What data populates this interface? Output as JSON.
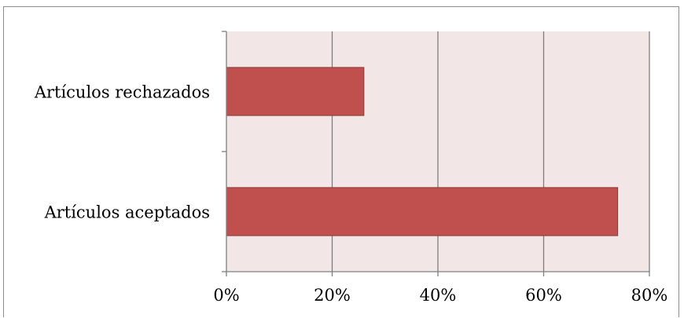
{
  "chart_data": {
    "type": "bar",
    "orientation": "horizontal",
    "categories": [
      "Artículos rechazados",
      "Artículos aceptados"
    ],
    "values": [
      26,
      74
    ],
    "value_unit": "%",
    "xlim": [
      0,
      80
    ],
    "x_ticks": [
      "0%",
      "20%",
      "40%",
      "60%",
      "80%"
    ],
    "title": "",
    "xlabel": "",
    "ylabel": "",
    "grid": true,
    "legend": "none",
    "colors": {
      "bar_fill": "#c0504d",
      "bar_stroke": "#8c3836",
      "plot_background": "#f2e6e6",
      "gridline": "#7f7f7f",
      "axis": "#7f7f7f"
    }
  }
}
